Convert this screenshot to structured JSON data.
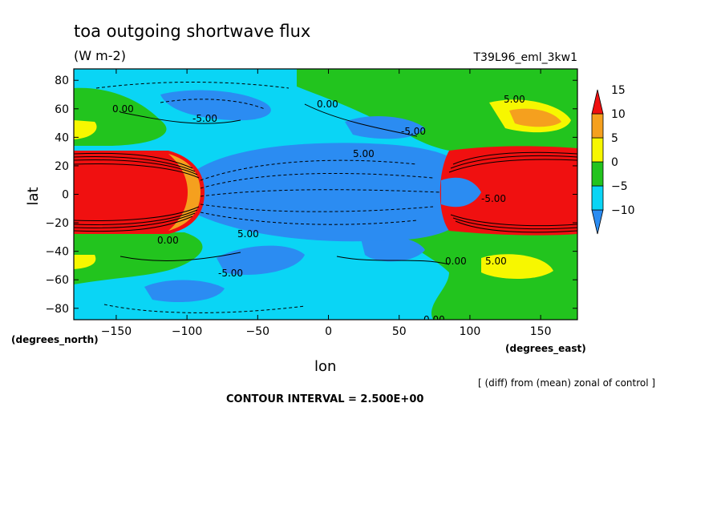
{
  "chart_data": {
    "type": "heatmap",
    "title": "toa outgoing shortwave flux",
    "units": "(W m-2)",
    "run_label": "T39L96_eml_3kw1",
    "xlabel": "lon",
    "ylabel": "lat",
    "x_units": "(degrees_east)",
    "y_units": "(degrees_north)",
    "xlim": [
      -180,
      176
    ],
    "ylim": [
      -88,
      88
    ],
    "x_ticks": [
      -150,
      -100,
      -50,
      0,
      50,
      100,
      150
    ],
    "y_ticks": [
      -80,
      -60,
      -40,
      -20,
      0,
      20,
      40,
      60,
      80
    ],
    "colorbar": {
      "levels": [
        -10,
        -5,
        0,
        5,
        10,
        15
      ],
      "colors": [
        "#2b8cf2",
        "#0ad5f5",
        "#22c41e",
        "#f7f700",
        "#f5a01e",
        "#f01010"
      ]
    },
    "contour_labels": [
      "0.00",
      "-5.00",
      "0.00",
      "5.00",
      "-5.00",
      "5.00",
      "-5.00",
      "5.00",
      "0.00",
      "-5.00",
      "0.00",
      "5.00",
      "0.00"
    ],
    "grid": false,
    "legend": "right"
  },
  "footer": {
    "note": "[ (diff) from (mean) zonal of control ]",
    "contour_interval": "CONTOUR INTERVAL = 2.500E+00"
  }
}
